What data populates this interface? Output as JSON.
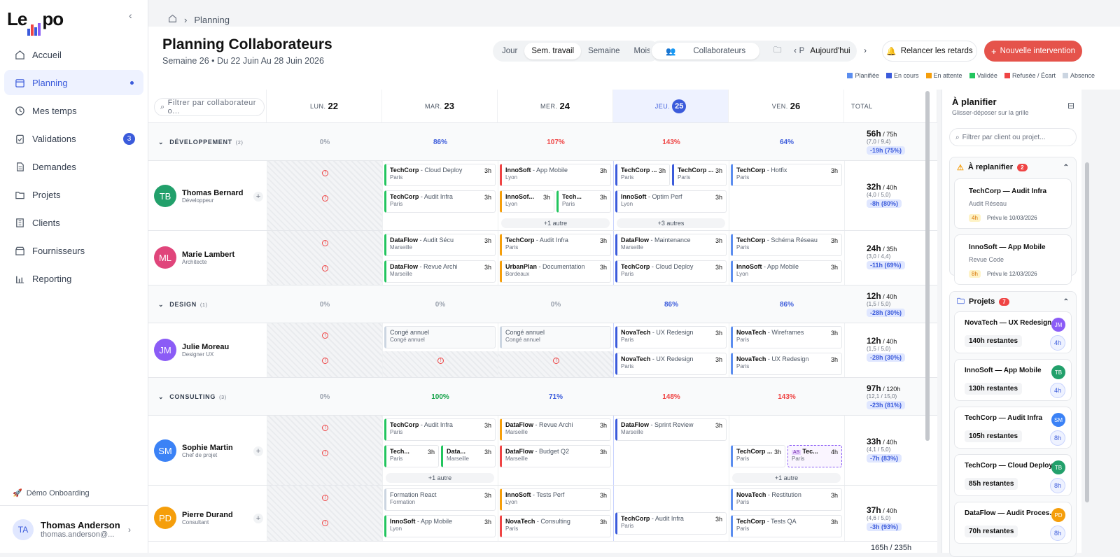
{
  "sidebar": {
    "logo": "Lempo",
    "items": [
      {
        "label": "Accueil"
      },
      {
        "label": "Planning"
      },
      {
        "label": "Mes temps"
      },
      {
        "label": "Validations",
        "badge": "3"
      },
      {
        "label": "Demandes"
      },
      {
        "label": "Projets"
      },
      {
        "label": "Clients"
      },
      {
        "label": "Fournisseurs"
      },
      {
        "label": "Reporting"
      }
    ],
    "demo": "Démo Onboarding",
    "user": {
      "initials": "TA",
      "name": "Thomas Anderson",
      "email": "thomas.anderson@..."
    }
  },
  "breadcrumb": {
    "current": "Planning"
  },
  "header": {
    "title": "Planning Collaborateurs",
    "subtitle": "Semaine 26 • Du 22 Juin Au 28 Juin 2026",
    "views": [
      "Jour",
      "Sem. travail",
      "Semaine",
      "Mois"
    ],
    "modes": [
      "Collaborateurs",
      "Projets"
    ],
    "today": "Aujourd'hui",
    "relaunch": "Relancer les retards",
    "new": "Nouvelle intervention",
    "legend": [
      {
        "label": "Planifiée",
        "color": "#5b8def"
      },
      {
        "label": "En cours",
        "color": "#3b5bdb"
      },
      {
        "label": "En attente",
        "color": "#f59e0b"
      },
      {
        "label": "Validée",
        "color": "#22c55e"
      },
      {
        "label": "Refusée / Écart",
        "color": "#ef4444"
      },
      {
        "label": "Absence",
        "color": "#cbd5e1"
      }
    ]
  },
  "grid": {
    "filter_placeholder": "Filtrer par collaborateur o...",
    "days": [
      {
        "dow": "LUN.",
        "num": "22"
      },
      {
        "dow": "MAR.",
        "num": "23"
      },
      {
        "dow": "MER.",
        "num": "24"
      },
      {
        "dow": "JEU.",
        "num": "25"
      },
      {
        "dow": "VEN.",
        "num": "26"
      }
    ],
    "total_label": "TOTAL",
    "groups": [
      {
        "name": "DÉVELOPPEMENT",
        "count": "(2)",
        "pcts": [
          "0%",
          "86%",
          "107%",
          "143%",
          "64%"
        ],
        "total": {
          "main": "56h",
          "cap": " / 75h",
          "sub": "(7,0 / 9,4)",
          "pill": "-19h (75%)"
        }
      },
      {
        "name": "DESIGN",
        "count": "(1)",
        "pcts": [
          "0%",
          "0%",
          "0%",
          "86%",
          "86%"
        ],
        "total": {
          "main": "12h",
          "cap": " / 40h",
          "sub": "(1,5 / 5,0)",
          "pill": "-28h (30%)"
        }
      },
      {
        "name": "CONSULTING",
        "count": "(3)",
        "pcts": [
          "0%",
          "100%",
          "71%",
          "148%",
          "143%"
        ],
        "total": {
          "main": "97h",
          "cap": " / 120h",
          "sub": "(12,1 / 15,0)",
          "pill": "-23h (81%)"
        }
      }
    ],
    "people": [
      {
        "initials": "TB",
        "name": "Thomas Bernard",
        "role": "Développeur",
        "total": {
          "main": "32h",
          "cap": " / 40h",
          "sub": "(4,0 / 5,0)",
          "pill": "-8h (80%)"
        }
      },
      {
        "initials": "ML",
        "name": "Marie Lambert",
        "role": "Architecte",
        "total": {
          "main": "24h",
          "cap": " / 35h",
          "sub": "(3,0 / 4,4)",
          "pill": "-11h (69%)"
        }
      },
      {
        "initials": "JM",
        "name": "Julie Moreau",
        "role": "Designer UX",
        "total": {
          "main": "12h",
          "cap": " / 40h",
          "sub": "(1,5 / 5,0)",
          "pill": "-28h (30%)"
        }
      },
      {
        "initials": "SM",
        "name": "Sophie Martin",
        "role": "Chef de projet",
        "total": {
          "main": "33h",
          "cap": " / 40h",
          "sub": "(4,1 / 5,0)",
          "pill": "-7h (83%)"
        }
      },
      {
        "initials": "PD",
        "name": "Pierre Durand",
        "role": "Consultant",
        "total": {
          "main": "37h",
          "cap": " / 40h",
          "sub": "(4,6 / 5,0)",
          "pill": "-3h (93%)"
        }
      }
    ],
    "cards": {
      "c1": {
        "client": "TechCorp",
        "task": " - Cloud Deploy",
        "loc": "Paris",
        "h": "3h"
      },
      "c2": {
        "client": "TechCorp",
        "task": " - Audit Infra",
        "loc": "Paris",
        "h": "3h"
      },
      "c3": {
        "client": "InnoSoft",
        "task": " - App Mobile",
        "loc": "Lyon",
        "h": "3h"
      },
      "c4": {
        "client": "InnoSof...",
        "task": "",
        "loc": "Lyon",
        "h": "3h"
      },
      "c5": {
        "client": "Tech...",
        "task": "",
        "loc": "Paris",
        "h": "3h"
      },
      "c6": {
        "client": "TechCorp ...",
        "task": "",
        "loc": "Paris",
        "h": "3h"
      },
      "c7": {
        "client": "TechCorp ...",
        "task": "",
        "loc": "Paris",
        "h": "3h"
      },
      "c8": {
        "client": "InnoSoft",
        "task": " - Optim Perf",
        "loc": "Lyon",
        "h": "3h"
      },
      "c9": {
        "client": "TechCorp",
        "task": " - Hotfix",
        "loc": "Paris",
        "h": "3h"
      },
      "c10": {
        "client": "DataFlow",
        "task": " - Audit Sécu",
        "loc": "Marseille",
        "h": "3h"
      },
      "c11": {
        "client": "DataFlow",
        "task": " - Revue Archi",
        "loc": "Marseille",
        "h": "3h"
      },
      "c12": {
        "client": "TechCorp",
        "task": " - Audit Infra",
        "loc": "Paris",
        "h": "3h"
      },
      "c13": {
        "client": "UrbanPlan",
        "task": " - Documentation",
        "loc": "Bordeaux",
        "h": "3h"
      },
      "c14": {
        "client": "DataFlow",
        "task": " - Maintenance",
        "loc": "Marseille",
        "h": "3h"
      },
      "c15": {
        "client": "TechCorp",
        "task": " - Cloud Deploy",
        "loc": "Paris",
        "h": "3h"
      },
      "c16": {
        "client": "TechCorp",
        "task": " - Schéma Réseau",
        "loc": "Paris",
        "h": "3h"
      },
      "c17": {
        "client": "InnoSoft",
        "task": " - App Mobile",
        "loc": "Lyon",
        "h": "3h"
      },
      "c18": {
        "client": "Congé annuel",
        "task": "",
        "loc": "Congé annuel",
        "h": ""
      },
      "c19": {
        "client": "Congé annuel",
        "task": "",
        "loc": "Congé annuel",
        "h": ""
      },
      "c20": {
        "client": "NovaTech",
        "task": " - UX Redesign",
        "loc": "Paris",
        "h": "3h"
      },
      "c21": {
        "client": "NovaTech",
        "task": " - Wireframes",
        "loc": "Paris",
        "h": "3h"
      },
      "c22": {
        "client": "NovaTech",
        "task": " - UX Redesign",
        "loc": "Paris",
        "h": "3h"
      },
      "c23": {
        "client": "NovaTech",
        "task": " - UX Redesign",
        "loc": "Paris",
        "h": "3h"
      },
      "c24": {
        "client": "TechCorp",
        "task": " - Audit Infra",
        "loc": "Paris",
        "h": "3h"
      },
      "c25": {
        "client": "DataFlow",
        "task": " - Revue Archi",
        "loc": "Marseille",
        "h": "3h"
      },
      "c26": {
        "client": "DataFlow",
        "task": " - Sprint Review",
        "loc": "Marseille",
        "h": "3h"
      },
      "c27": {
        "client": "Tech...",
        "task": "",
        "loc": "Paris",
        "h": "3h"
      },
      "c28": {
        "client": "Data...",
        "task": "",
        "loc": "Marseille",
        "h": "3h"
      },
      "c29": {
        "client": "DataFlow",
        "task": " - Budget Q2",
        "loc": "Marseille",
        "h": "3h"
      },
      "c30": {
        "client": "TechCorp ...",
        "task": "",
        "loc": "Paris",
        "h": "3h"
      },
      "c31": {
        "client": "Tec...",
        "task": "",
        "loc": "Paris",
        "h": "4h",
        "tag": "AS"
      },
      "c32": {
        "client": "Formation React",
        "task": "",
        "loc": "Formation",
        "h": "3h"
      },
      "c33": {
        "client": "InnoSoft",
        "task": " - Tests Perf",
        "loc": "Lyon",
        "h": "3h"
      },
      "c34": {
        "client": "NovaTech",
        "task": " - Restitution",
        "loc": "Paris",
        "h": "3h"
      },
      "c35": {
        "client": "InnoSoft",
        "task": " - App Mobile",
        "loc": "Lyon",
        "h": "3h"
      },
      "c36": {
        "client": "NovaTech",
        "task": " - Consulting",
        "loc": "Paris",
        "h": "3h"
      },
      "c37": {
        "client": "TechCorp",
        "task": " - Audit Infra",
        "loc": "Paris",
        "h": "3h"
      },
      "c38": {
        "client": "TechCorp",
        "task": " - Tests QA",
        "loc": "Paris",
        "h": "3h"
      }
    },
    "more1": "+1 autre",
    "more2": "+3 autres",
    "more3": "+1 autre",
    "more4": "+1 autre",
    "footer_total": "165h / 235h"
  },
  "panel": {
    "title": "À planifier",
    "subtitle": "Glisser-déposer sur la grille",
    "search": "Filtrer par client ou projet...",
    "replan": {
      "title": "À replanifier",
      "count": "2",
      "items": [
        {
          "title": "TechCorp — Audit Infra",
          "sub": "Audit Réseau",
          "h": "4h",
          "date": "Prévu le 10/03/2026"
        },
        {
          "title": "InnoSoft — App Mobile",
          "sub": "Revue Code",
          "h": "8h",
          "date": "Prévu le 12/03/2026"
        }
      ]
    },
    "projects": {
      "title": "Projets",
      "count": "7",
      "items": [
        {
          "title": "NovaTech — UX Redesign",
          "rest": "140h restantes",
          "av": "JM",
          "h": "4h",
          "color": "#8b5cf6"
        },
        {
          "title": "InnoSoft — App Mobile",
          "rest": "130h restantes",
          "av": "TB",
          "h": "4h",
          "color": "#22a06b"
        },
        {
          "title": "TechCorp — Audit Infra",
          "rest": "105h restantes",
          "av": "SM",
          "h": "8h",
          "color": "#3b82f6"
        },
        {
          "title": "TechCorp — Cloud Deploy",
          "rest": "85h restantes",
          "av": "TB",
          "h": "8h",
          "color": "#22a06b"
        },
        {
          "title": "DataFlow — Audit Proces...",
          "rest": "70h restantes",
          "av": "PD",
          "h": "8h",
          "color": "#f59e0b"
        }
      ]
    }
  }
}
